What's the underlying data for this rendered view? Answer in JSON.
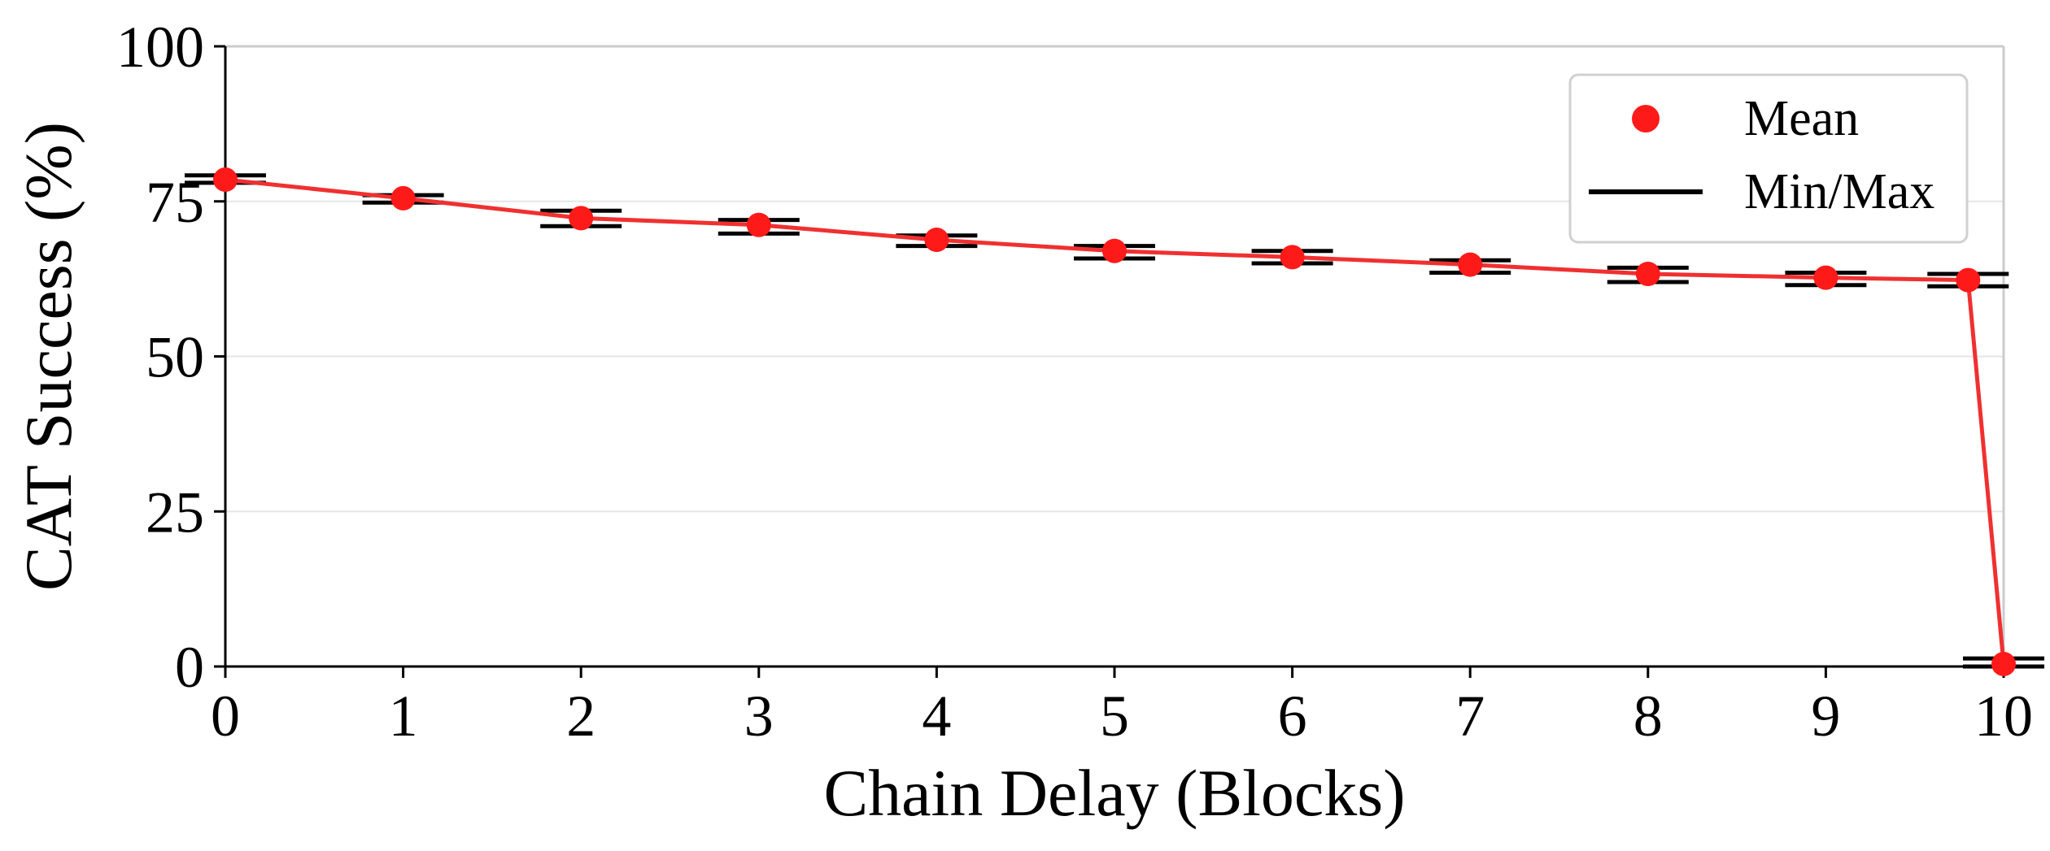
{
  "chart_data": {
    "type": "line",
    "title": "",
    "xlabel": "Chain Delay (Blocks)",
    "ylabel": "CAT Success (%)",
    "xlim": [
      0,
      10
    ],
    "ylim": [
      0,
      100
    ],
    "xticks": [
      "0",
      "1",
      "2",
      "3",
      "4",
      "5",
      "6",
      "7",
      "8",
      "9",
      "10"
    ],
    "yticks": [
      "0",
      "25",
      "50",
      "75",
      "100"
    ],
    "grid": "horizontal",
    "legend_position": "top-right",
    "legend": [
      {
        "label": "Mean",
        "marker": "circle"
      },
      {
        "label": "Min/Max",
        "marker": "line"
      }
    ],
    "series": [
      {
        "name": "Mean",
        "color": "#ff1a1a",
        "x": [
          0,
          1,
          2,
          3,
          4,
          5,
          6,
          7,
          8,
          9,
          9.8,
          10
        ],
        "y": [
          78.5,
          75.5,
          72.3,
          71.2,
          68.8,
          67.0,
          66.0,
          64.8,
          63.3,
          62.7,
          62.3,
          0.4
        ],
        "min": [
          78.0,
          74.8,
          71.0,
          69.8,
          67.8,
          65.8,
          65.0,
          63.5,
          62.0,
          61.5,
          61.3,
          0.0
        ],
        "max": [
          79.2,
          76.0,
          73.5,
          72.0,
          69.5,
          67.8,
          67.0,
          65.5,
          64.3,
          63.5,
          63.3,
          1.3
        ]
      }
    ],
    "colors": {
      "mean_marker": "#ff1a1a",
      "mean_line": "#f03030",
      "minmax": "#000000",
      "grid": "#e6e6e6",
      "axis": "#000000",
      "frame": "#cccccc"
    }
  }
}
